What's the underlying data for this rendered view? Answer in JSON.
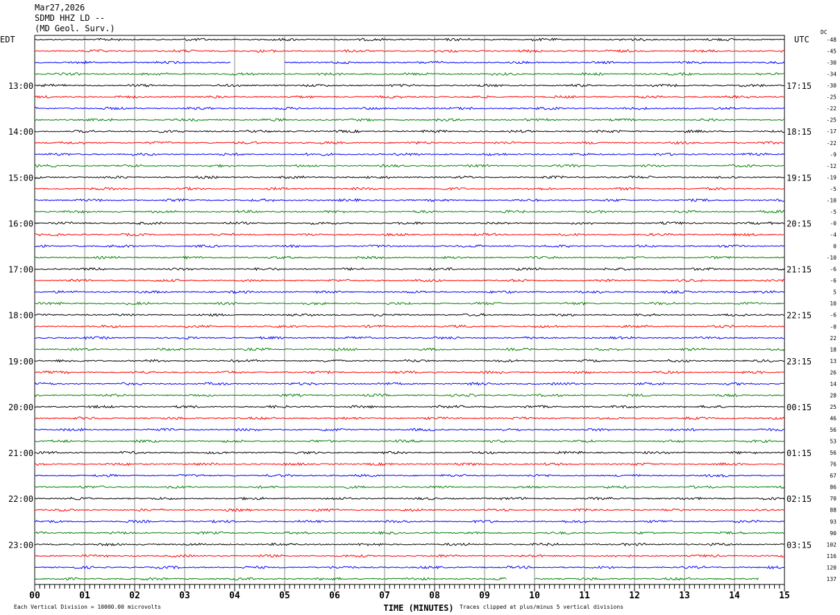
{
  "header": {
    "date": "Mar27,2026",
    "station": "SDMD HHZ LD --",
    "agency": "(MD Geol. Surv.)"
  },
  "chart_data": {
    "type": "line",
    "subtype": "helicorder",
    "left_timezone": "EDT",
    "right_timezone": "UTC",
    "dc_header": "DC",
    "xlabel": "TIME (MINUTES)",
    "x_ticks": [
      "00",
      "01",
      "02",
      "03",
      "04",
      "05",
      "06",
      "07",
      "08",
      "09",
      "10",
      "11",
      "12",
      "13",
      "14",
      "15"
    ],
    "xlim": [
      0,
      15
    ],
    "row_minutes": 15,
    "trace_colors": [
      "#000000",
      "#ff0000",
      "#0000ff",
      "#008000"
    ],
    "left_labels": [
      {
        "row": 4,
        "text": "13:00"
      },
      {
        "row": 8,
        "text": "14:00"
      },
      {
        "row": 12,
        "text": "15:00"
      },
      {
        "row": 16,
        "text": "16:00"
      },
      {
        "row": 20,
        "text": "17:00"
      },
      {
        "row": 24,
        "text": "18:00"
      },
      {
        "row": 28,
        "text": "19:00"
      },
      {
        "row": 32,
        "text": "20:00"
      },
      {
        "row": 36,
        "text": "21:00"
      },
      {
        "row": 40,
        "text": "22:00"
      },
      {
        "row": 44,
        "text": "23:00"
      }
    ],
    "right_labels": [
      {
        "row": 4,
        "text": "17:15"
      },
      {
        "row": 8,
        "text": "18:15"
      },
      {
        "row": 12,
        "text": "19:15"
      },
      {
        "row": 16,
        "text": "20:15"
      },
      {
        "row": 20,
        "text": "21:15"
      },
      {
        "row": 24,
        "text": "22:15"
      },
      {
        "row": 28,
        "text": "23:15"
      },
      {
        "row": 32,
        "text": "00:15"
      },
      {
        "row": 36,
        "text": "01:15"
      },
      {
        "row": 40,
        "text": "02:15"
      },
      {
        "row": 44,
        "text": "03:15"
      }
    ],
    "dc_offsets": [
      "-48",
      "-45",
      "-30",
      "-34",
      "-30",
      "-25",
      "-22",
      "-25",
      "-17",
      "-22",
      "-9",
      "-12",
      "-19",
      "-5",
      "-10",
      "-5",
      "-0",
      "-4",
      "0",
      "-10",
      "-6",
      "-6",
      "5",
      "10",
      "-6",
      "-0",
      "22",
      "18",
      "13",
      "26",
      "14",
      "28",
      "25",
      "46",
      "56",
      "53",
      "56",
      "76",
      "67",
      "86",
      "70",
      "88",
      "93",
      "90",
      "102",
      "116",
      "120",
      "137"
    ],
    "gaps": [
      {
        "row": 2,
        "from": 3.93,
        "to": 5.0
      },
      {
        "row": 47,
        "from": 9.45,
        "to": 10.0
      },
      {
        "row": 47,
        "from": 14.5,
        "to": 15
      }
    ],
    "scale_note": "Each Vertical Division = 10000.00 microvolts",
    "clip_note": "Traces clipped at plus/minus 5 vertical divisions"
  }
}
